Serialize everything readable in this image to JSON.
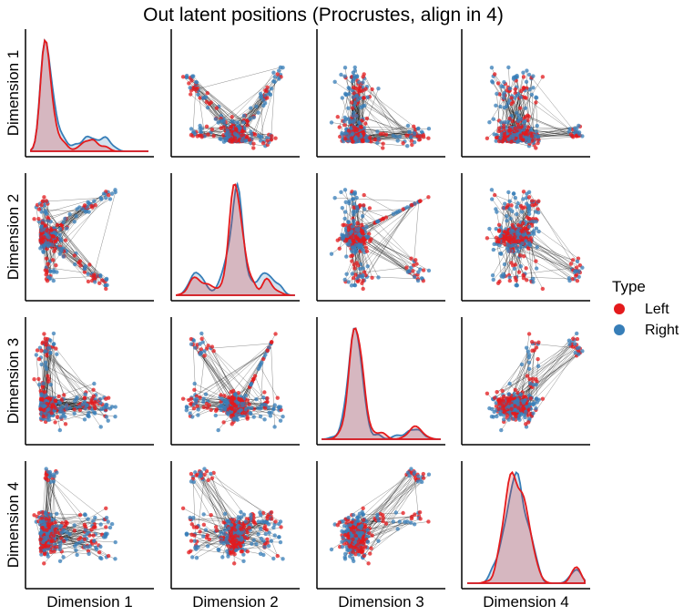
{
  "chart_data": {
    "type": "pairplot",
    "title": "Out latent positions (Procrustes, align in 4)",
    "variables": [
      "Dimension 1",
      "Dimension 2",
      "Dimension 3",
      "Dimension 4"
    ],
    "legend": {
      "title": "Type",
      "placement": "right",
      "entries": [
        {
          "label": "Left",
          "color": "#e41a1c"
        },
        {
          "label": "Right",
          "color": "#377eb8"
        }
      ]
    },
    "pair_lines": true,
    "pair_line_color": "#000000",
    "ticks_shown": false,
    "grid": false,
    "diagonal": "kde",
    "kde_peak_locations": [
      0.1,
      0.55,
      0.3,
      0.4
    ]
  }
}
